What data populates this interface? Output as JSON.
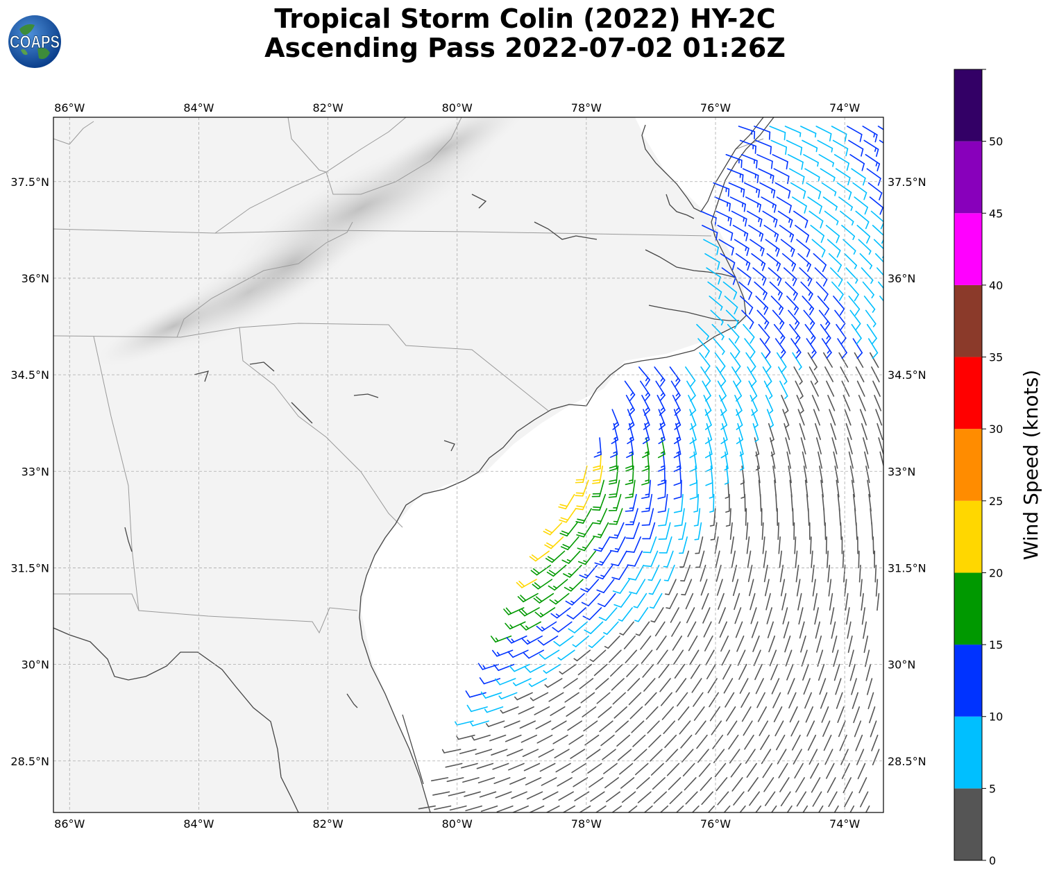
{
  "title": {
    "line1": "Tropical Storm Colin (2022) HY-2C",
    "line2": "Ascending Pass 2022-07-02 01:26Z"
  },
  "logo": {
    "text": "COAPS",
    "icon": "globe-icon"
  },
  "map": {
    "lon_range": [
      -86.25,
      -73.4
    ],
    "lat_range": [
      27.7,
      38.5
    ],
    "lon_ticks": [
      {
        "v": -86,
        "label": "86°W"
      },
      {
        "v": -84,
        "label": "84°W"
      },
      {
        "v": -82,
        "label": "82°W"
      },
      {
        "v": -80,
        "label": "80°W"
      },
      {
        "v": -78,
        "label": "78°W"
      },
      {
        "v": -76,
        "label": "76°W"
      },
      {
        "v": -74,
        "label": "74°W"
      }
    ],
    "lat_ticks": [
      {
        "v": 37.5,
        "label": "37.5°N"
      },
      {
        "v": 36,
        "label": "36°N"
      },
      {
        "v": 34.5,
        "label": "34.5°N"
      },
      {
        "v": 33,
        "label": "33°N"
      },
      {
        "v": 31.5,
        "label": "31.5°N"
      },
      {
        "v": 30,
        "label": "30°N"
      },
      {
        "v": 28.5,
        "label": "28.5°N"
      }
    ],
    "grid": true,
    "coastline_color": "#444444",
    "border_color": "#999999"
  },
  "colorbar": {
    "title": "Wind Speed (knots)",
    "range": [
      0,
      55
    ],
    "bins": [
      {
        "from": 0,
        "to": 5,
        "color": "#555555"
      },
      {
        "from": 5,
        "to": 10,
        "color": "#00bfff"
      },
      {
        "from": 10,
        "to": 15,
        "color": "#0033ff"
      },
      {
        "from": 15,
        "to": 20,
        "color": "#009900"
      },
      {
        "from": 20,
        "to": 25,
        "color": "#ffd700"
      },
      {
        "from": 25,
        "to": 30,
        "color": "#ff8c00"
      },
      {
        "from": 30,
        "to": 35,
        "color": "#ff0000"
      },
      {
        "from": 35,
        "to": 40,
        "color": "#8b3a2a"
      },
      {
        "from": 40,
        "to": 45,
        "color": "#ff00ff"
      },
      {
        "from": 45,
        "to": 50,
        "color": "#8800bb"
      },
      {
        "from": 50,
        "to": 55,
        "color": "#330066"
      }
    ],
    "ticks": [
      "0",
      "5",
      "10",
      "15",
      "20",
      "25",
      "30",
      "35",
      "40",
      "45",
      "50"
    ]
  },
  "wind_field": {
    "center": {
      "lon": -79.2,
      "lat": 33.9
    },
    "swath_edge_lon_at_lat28": -80.25,
    "swath_edge_lon_at_lat38": -75.8,
    "low_wind_patches": [
      {
        "lon": -74.2,
        "lat": 34.3,
        "radius_deg": 0.5
      },
      {
        "lon": -74.2,
        "lat": 32.8,
        "radius_deg": 0.55
      }
    ],
    "strong_band": {
      "lon_at_lat31": -80.35,
      "lon_at_lat33": -79.2
    }
  }
}
